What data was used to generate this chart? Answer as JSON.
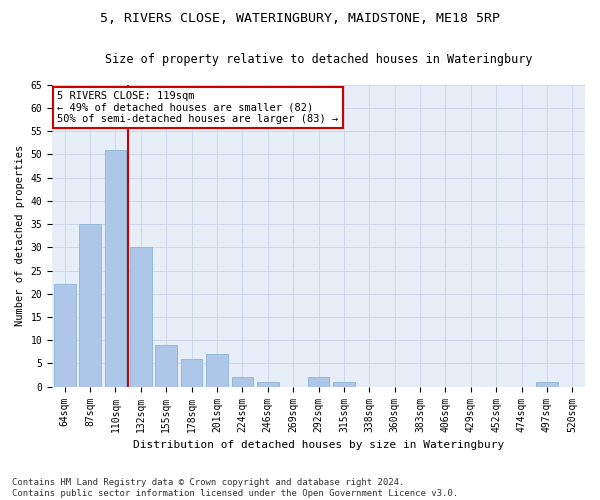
{
  "title1": "5, RIVERS CLOSE, WATERINGBURY, MAIDSTONE, ME18 5RP",
  "title2": "Size of property relative to detached houses in Wateringbury",
  "xlabel": "Distribution of detached houses by size in Wateringbury",
  "ylabel": "Number of detached properties",
  "categories": [
    "64sqm",
    "87sqm",
    "110sqm",
    "132sqm",
    "155sqm",
    "178sqm",
    "201sqm",
    "224sqm",
    "246sqm",
    "269sqm",
    "292sqm",
    "315sqm",
    "338sqm",
    "360sqm",
    "383sqm",
    "406sqm",
    "429sqm",
    "452sqm",
    "474sqm",
    "497sqm",
    "520sqm"
  ],
  "values": [
    22,
    35,
    51,
    30,
    9,
    6,
    7,
    2,
    1,
    0,
    2,
    1,
    0,
    0,
    0,
    0,
    0,
    0,
    0,
    1,
    0
  ],
  "bar_color": "#aec6e8",
  "bar_edge_color": "#8ab4d8",
  "vline_x": 2.5,
  "vline_color": "#cc0000",
  "annotation_text": "5 RIVERS CLOSE: 119sqm\n← 49% of detached houses are smaller (82)\n50% of semi-detached houses are larger (83) →",
  "annotation_box_color": "#ffffff",
  "annotation_box_edge": "#cc0000",
  "ylim": [
    0,
    65
  ],
  "yticks": [
    0,
    5,
    10,
    15,
    20,
    25,
    30,
    35,
    40,
    45,
    50,
    55,
    60,
    65
  ],
  "grid_color": "#c8d4e8",
  "bg_color": "#e8eef8",
  "footnote": "Contains HM Land Registry data © Crown copyright and database right 2024.\nContains public sector information licensed under the Open Government Licence v3.0.",
  "title1_fontsize": 9.5,
  "title2_fontsize": 8.5,
  "xlabel_fontsize": 8,
  "ylabel_fontsize": 7.5,
  "tick_fontsize": 7,
  "annotation_fontsize": 7.5,
  "footnote_fontsize": 6.5
}
